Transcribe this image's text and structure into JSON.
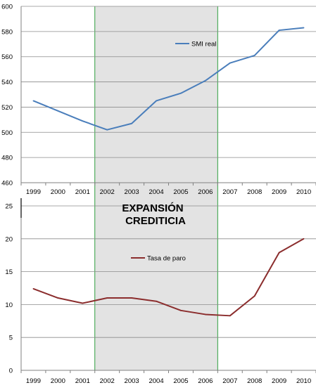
{
  "chart_data": [
    {
      "type": "line",
      "categories": [
        "1999",
        "2000",
        "2001",
        "2002",
        "2003",
        "2004",
        "2005",
        "2006",
        "2007",
        "2008",
        "2009",
        "2010"
      ],
      "series": [
        {
          "name": "SMI real",
          "values": [
            525,
            517,
            509,
            502,
            507,
            525,
            531,
            541,
            555,
            561,
            581,
            583
          ]
        }
      ],
      "ylim": [
        460,
        600
      ],
      "yticks": [
        460,
        480,
        500,
        520,
        540,
        560,
        580,
        600
      ],
      "grid": true,
      "legend": "top-right",
      "color": "#4a7ebb"
    },
    {
      "type": "line",
      "categories": [
        "1999",
        "2000",
        "2001",
        "2002",
        "2003",
        "2004",
        "2005",
        "2006",
        "2007",
        "2008",
        "2009",
        "2010"
      ],
      "series": [
        {
          "name": "Tasa de paro",
          "values": [
            12.4,
            11.0,
            10.2,
            11.0,
            11.0,
            10.5,
            9.1,
            8.5,
            8.3,
            11.3,
            17.9,
            20.0
          ]
        }
      ],
      "ylim": [
        0,
        25
      ],
      "yticks": [
        0,
        5,
        10,
        15,
        20,
        25
      ],
      "grid": true,
      "legend": "top-center",
      "color": "#8b2d2d"
    }
  ],
  "annotation": {
    "label_line1": "EXPANSIÓN",
    "label_line2": "CREDITICIA",
    "from": "2002",
    "to": "2006",
    "fill": "#e3e3e3",
    "border": "#2e9e3e"
  }
}
